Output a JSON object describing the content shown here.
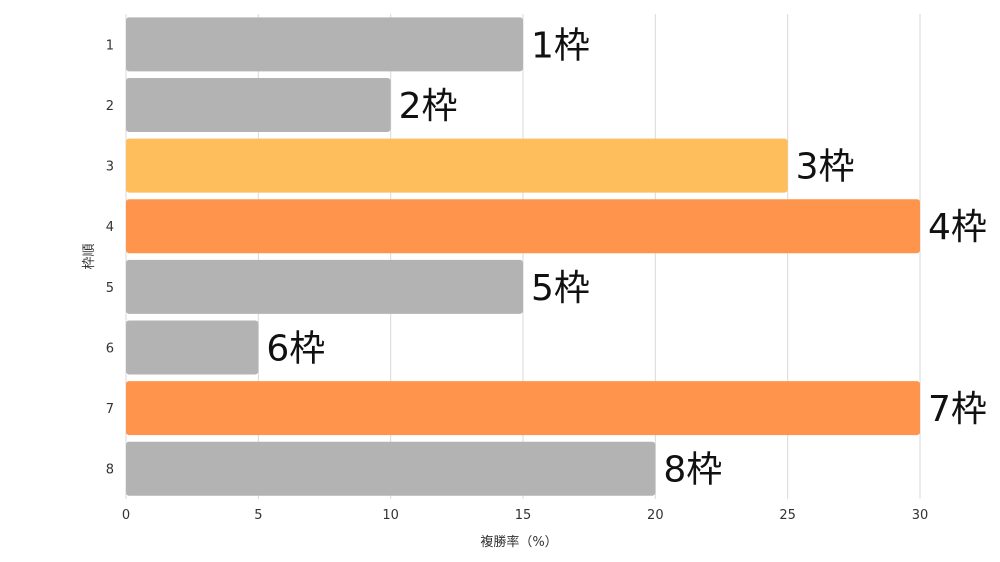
{
  "chart_data": {
    "type": "bar",
    "orientation": "horizontal",
    "xlabel": "複勝率（%）",
    "ylabel": "枠順",
    "xlim": [
      0,
      30
    ],
    "x_ticks": [
      0,
      5,
      10,
      15,
      20,
      25,
      30
    ],
    "grid": "vertical",
    "categories": [
      "1",
      "2",
      "3",
      "4",
      "5",
      "6",
      "7",
      "8"
    ],
    "values": [
      15,
      10,
      25,
      30,
      15,
      5,
      30,
      20
    ],
    "data_labels": [
      "1枠",
      "2枠",
      "3枠",
      "4枠",
      "5枠",
      "6枠",
      "7枠",
      "8枠"
    ],
    "colors": [
      "#b3b3b3",
      "#b3b3b3",
      "#ffbe5c",
      "#ff944d",
      "#b3b3b3",
      "#b3b3b3",
      "#ff944d",
      "#b3b3b3"
    ]
  }
}
